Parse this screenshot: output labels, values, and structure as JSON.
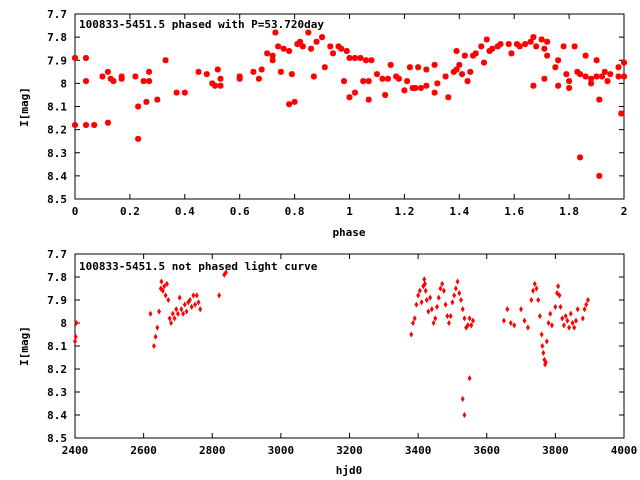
{
  "chart_data": [
    {
      "type": "scatter",
      "title": "100833-5451.5 phased with P=53.720day",
      "xlabel": "phase",
      "ylabel": "I[mag]",
      "xlim": [
        0,
        2
      ],
      "ylim": [
        7.7,
        8.5
      ],
      "y_inverted": true,
      "grid": false,
      "marker": "star",
      "color": "#ff0000",
      "x_ticks": [
        "0",
        "0.2",
        "0.4",
        "0.6",
        "0.8",
        "1",
        "1.2",
        "1.4",
        "1.6",
        "1.8",
        "2"
      ],
      "y_ticks": [
        "7.7",
        "7.8",
        "7.9",
        "8",
        "8.1",
        "8.2",
        "8.3",
        "8.4",
        "8.5"
      ],
      "points": [
        [
          0.0,
          7.89
        ],
        [
          0.0,
          8.18
        ],
        [
          0.04,
          7.89
        ],
        [
          0.04,
          7.99
        ],
        [
          0.04,
          8.18
        ],
        [
          0.07,
          8.18
        ],
        [
          0.1,
          7.97
        ],
        [
          0.12,
          7.95
        ],
        [
          0.12,
          8.17
        ],
        [
          0.13,
          7.98
        ],
        [
          0.14,
          7.99
        ],
        [
          0.17,
          7.97
        ],
        [
          0.17,
          7.98
        ],
        [
          0.22,
          7.97
        ],
        [
          0.23,
          8.1
        ],
        [
          0.23,
          8.24
        ],
        [
          0.25,
          7.99
        ],
        [
          0.26,
          8.08
        ],
        [
          0.27,
          7.95
        ],
        [
          0.27,
          7.99
        ],
        [
          0.3,
          8.07
        ],
        [
          0.33,
          7.9
        ],
        [
          0.37,
          8.04
        ],
        [
          0.4,
          8.04
        ],
        [
          0.45,
          7.95
        ],
        [
          0.48,
          7.96
        ],
        [
          0.5,
          8.0
        ],
        [
          0.51,
          8.01
        ],
        [
          0.52,
          7.94
        ],
        [
          0.53,
          8.01
        ],
        [
          0.53,
          7.98
        ],
        [
          0.6,
          7.98
        ],
        [
          0.6,
          7.97
        ],
        [
          0.65,
          7.95
        ],
        [
          0.67,
          7.98
        ],
        [
          0.68,
          7.94
        ],
        [
          0.7,
          7.87
        ],
        [
          0.72,
          7.9
        ],
        [
          0.72,
          7.88
        ],
        [
          0.73,
          7.78
        ],
        [
          0.74,
          7.84
        ],
        [
          0.75,
          7.95
        ],
        [
          0.76,
          7.85
        ],
        [
          0.78,
          7.86
        ],
        [
          0.78,
          8.09
        ],
        [
          0.79,
          7.96
        ],
        [
          0.8,
          8.08
        ],
        [
          0.81,
          7.83
        ],
        [
          0.82,
          7.82
        ],
        [
          0.83,
          7.84
        ],
        [
          0.85,
          7.78
        ],
        [
          0.86,
          7.85
        ],
        [
          0.87,
          7.97
        ],
        [
          0.88,
          7.82
        ],
        [
          0.9,
          7.8
        ],
        [
          0.91,
          7.93
        ],
        [
          0.93,
          7.84
        ],
        [
          0.94,
          7.87
        ],
        [
          0.96,
          7.84
        ],
        [
          0.97,
          7.85
        ],
        [
          0.98,
          7.99
        ],
        [
          0.99,
          7.86
        ],
        [
          1.0,
          7.89
        ],
        [
          1.0,
          8.06
        ],
        [
          1.02,
          7.89
        ],
        [
          1.02,
          8.04
        ],
        [
          1.04,
          7.89
        ],
        [
          1.05,
          7.99
        ],
        [
          1.06,
          7.9
        ],
        [
          1.07,
          8.07
        ],
        [
          1.07,
          7.99
        ],
        [
          1.08,
          7.9
        ],
        [
          1.1,
          7.96
        ],
        [
          1.12,
          7.98
        ],
        [
          1.13,
          8.05
        ],
        [
          1.14,
          7.98
        ],
        [
          1.15,
          7.92
        ],
        [
          1.17,
          7.97
        ],
        [
          1.18,
          7.98
        ],
        [
          1.2,
          8.03
        ],
        [
          1.21,
          7.99
        ],
        [
          1.22,
          7.93
        ],
        [
          1.23,
          8.02
        ],
        [
          1.24,
          8.02
        ],
        [
          1.25,
          7.93
        ],
        [
          1.26,
          8.02
        ],
        [
          1.28,
          7.94
        ],
        [
          1.28,
          8.01
        ],
        [
          1.31,
          7.92
        ],
        [
          1.31,
          8.04
        ],
        [
          1.32,
          8.0
        ],
        [
          1.35,
          7.97
        ],
        [
          1.36,
          8.06
        ],
        [
          1.38,
          7.95
        ],
        [
          1.39,
          7.94
        ],
        [
          1.39,
          7.86
        ],
        [
          1.4,
          7.92
        ],
        [
          1.41,
          7.96
        ],
        [
          1.42,
          7.88
        ],
        [
          1.43,
          7.99
        ],
        [
          1.44,
          7.95
        ],
        [
          1.45,
          7.88
        ],
        [
          1.46,
          7.87
        ],
        [
          1.48,
          7.84
        ],
        [
          1.49,
          7.91
        ],
        [
          1.5,
          7.81
        ],
        [
          1.51,
          7.86
        ],
        [
          1.52,
          7.85
        ],
        [
          1.54,
          7.84
        ],
        [
          1.55,
          7.83
        ],
        [
          1.58,
          7.83
        ],
        [
          1.59,
          7.87
        ],
        [
          1.61,
          7.83
        ],
        [
          1.62,
          7.84
        ],
        [
          1.64,
          7.83
        ],
        [
          1.66,
          7.82
        ],
        [
          1.67,
          7.8
        ],
        [
          1.67,
          8.01
        ],
        [
          1.68,
          7.84
        ],
        [
          1.7,
          7.81
        ],
        [
          1.71,
          7.98
        ],
        [
          1.71,
          7.85
        ],
        [
          1.72,
          7.88
        ],
        [
          1.72,
          7.82
        ],
        [
          1.75,
          7.93
        ],
        [
          1.76,
          8.01
        ],
        [
          1.76,
          7.9
        ],
        [
          1.78,
          7.84
        ],
        [
          1.79,
          7.96
        ],
        [
          1.8,
          7.99
        ],
        [
          1.8,
          8.02
        ],
        [
          1.82,
          7.84
        ],
        [
          1.83,
          7.95
        ],
        [
          1.84,
          7.96
        ],
        [
          1.84,
          8.32
        ],
        [
          1.86,
          7.97
        ],
        [
          1.86,
          7.88
        ],
        [
          1.88,
          8.0
        ],
        [
          1.88,
          7.98
        ],
        [
          1.9,
          7.97
        ],
        [
          1.9,
          7.9
        ],
        [
          1.91,
          8.4
        ],
        [
          1.91,
          8.07
        ],
        [
          1.92,
          7.97
        ],
        [
          1.93,
          7.95
        ],
        [
          1.94,
          7.99
        ],
        [
          1.95,
          7.96
        ],
        [
          1.98,
          7.97
        ],
        [
          1.98,
          7.93
        ],
        [
          1.99,
          8.13
        ],
        [
          2.0,
          7.97
        ],
        [
          2.0,
          7.91
        ]
      ]
    },
    {
      "type": "scatter",
      "title": "100833-5451.5 not phased light curve",
      "xlabel": "hjd0",
      "ylabel": "I[mag]",
      "xlim": [
        2400,
        4000
      ],
      "ylim": [
        7.7,
        8.5
      ],
      "y_inverted": true,
      "grid": false,
      "marker": "diamond",
      "color": "#ff0000",
      "x_ticks": [
        "2400",
        "2600",
        "2800",
        "3000",
        "3200",
        "3400",
        "3600",
        "3800",
        "4000"
      ],
      "y_ticks": [
        "7.7",
        "7.8",
        "7.9",
        "8",
        "8.1",
        "8.2",
        "8.3",
        "8.4",
        "8.5"
      ],
      "points": [
        [
          2400,
          8.08
        ],
        [
          2402,
          8.06
        ],
        [
          2404,
          8.0
        ],
        [
          2620,
          7.96
        ],
        [
          2630,
          8.1
        ],
        [
          2635,
          8.06
        ],
        [
          2640,
          8.02
        ],
        [
          2645,
          7.95
        ],
        [
          2650,
          7.85
        ],
        [
          2652,
          7.82
        ],
        [
          2656,
          7.86
        ],
        [
          2660,
          7.84
        ],
        [
          2664,
          7.88
        ],
        [
          2668,
          7.83
        ],
        [
          2672,
          7.9
        ],
        [
          2676,
          7.98
        ],
        [
          2680,
          8.0
        ],
        [
          2685,
          7.96
        ],
        [
          2690,
          7.98
        ],
        [
          2695,
          7.94
        ],
        [
          2700,
          7.96
        ],
        [
          2705,
          7.89
        ],
        [
          2710,
          7.94
        ],
        [
          2715,
          7.96
        ],
        [
          2720,
          7.92
        ],
        [
          2725,
          7.95
        ],
        [
          2730,
          7.91
        ],
        [
          2735,
          7.9
        ],
        [
          2740,
          7.93
        ],
        [
          2745,
          7.88
        ],
        [
          2750,
          7.92
        ],
        [
          2755,
          7.88
        ],
        [
          2760,
          7.91
        ],
        [
          2765,
          7.94
        ],
        [
          2820,
          7.88
        ],
        [
          2835,
          7.79
        ],
        [
          2840,
          7.78
        ],
        [
          3380,
          8.05
        ],
        [
          3385,
          8.0
        ],
        [
          3390,
          7.98
        ],
        [
          3395,
          7.92
        ],
        [
          3400,
          7.88
        ],
        [
          3405,
          7.86
        ],
        [
          3410,
          7.91
        ],
        [
          3415,
          7.84
        ],
        [
          3418,
          7.81
        ],
        [
          3420,
          7.83
        ],
        [
          3422,
          7.86
        ],
        [
          3425,
          7.9
        ],
        [
          3430,
          7.95
        ],
        [
          3435,
          7.89
        ],
        [
          3440,
          7.94
        ],
        [
          3445,
          8.0
        ],
        [
          3450,
          7.98
        ],
        [
          3455,
          7.93
        ],
        [
          3460,
          7.89
        ],
        [
          3465,
          7.85
        ],
        [
          3470,
          7.83
        ],
        [
          3475,
          7.86
        ],
        [
          3480,
          7.92
        ],
        [
          3485,
          7.97
        ],
        [
          3490,
          8.0
        ],
        [
          3495,
          7.97
        ],
        [
          3500,
          7.91
        ],
        [
          3505,
          7.88
        ],
        [
          3510,
          7.85
        ],
        [
          3515,
          7.82
        ],
        [
          3520,
          7.87
        ],
        [
          3525,
          7.9
        ],
        [
          3530,
          7.94
        ],
        [
          3535,
          7.98
        ],
        [
          3540,
          8.02
        ],
        [
          3545,
          8.01
        ],
        [
          3550,
          7.98
        ],
        [
          3530,
          8.33
        ],
        [
          3535,
          8.4
        ],
        [
          3550,
          8.24
        ],
        [
          3555,
          8.01
        ],
        [
          3560,
          7.99
        ],
        [
          3650,
          7.99
        ],
        [
          3660,
          7.94
        ],
        [
          3670,
          8.0
        ],
        [
          3680,
          8.01
        ],
        [
          3700,
          7.94
        ],
        [
          3710,
          7.99
        ],
        [
          3720,
          8.02
        ],
        [
          3730,
          7.9
        ],
        [
          3735,
          7.86
        ],
        [
          3740,
          7.83
        ],
        [
          3745,
          7.85
        ],
        [
          3750,
          7.9
        ],
        [
          3755,
          7.97
        ],
        [
          3760,
          8.05
        ],
        [
          3762,
          8.1
        ],
        [
          3765,
          8.13
        ],
        [
          3768,
          8.16
        ],
        [
          3770,
          8.18
        ],
        [
          3772,
          8.17
        ],
        [
          3775,
          8.08
        ],
        [
          3780,
          8.0
        ],
        [
          3785,
          7.96
        ],
        [
          3790,
          8.01
        ],
        [
          3800,
          7.93
        ],
        [
          3805,
          7.87
        ],
        [
          3808,
          7.84
        ],
        [
          3812,
          7.88
        ],
        [
          3815,
          7.93
        ],
        [
          3820,
          7.98
        ],
        [
          3825,
          8.01
        ],
        [
          3830,
          7.97
        ],
        [
          3835,
          7.99
        ],
        [
          3840,
          8.02
        ],
        [
          3845,
          7.96
        ],
        [
          3850,
          8.0
        ],
        [
          3855,
          8.02
        ],
        [
          3860,
          7.99
        ],
        [
          3865,
          7.94
        ],
        [
          3880,
          7.98
        ],
        [
          3885,
          7.94
        ],
        [
          3890,
          7.92
        ],
        [
          3895,
          7.9
        ]
      ]
    }
  ]
}
